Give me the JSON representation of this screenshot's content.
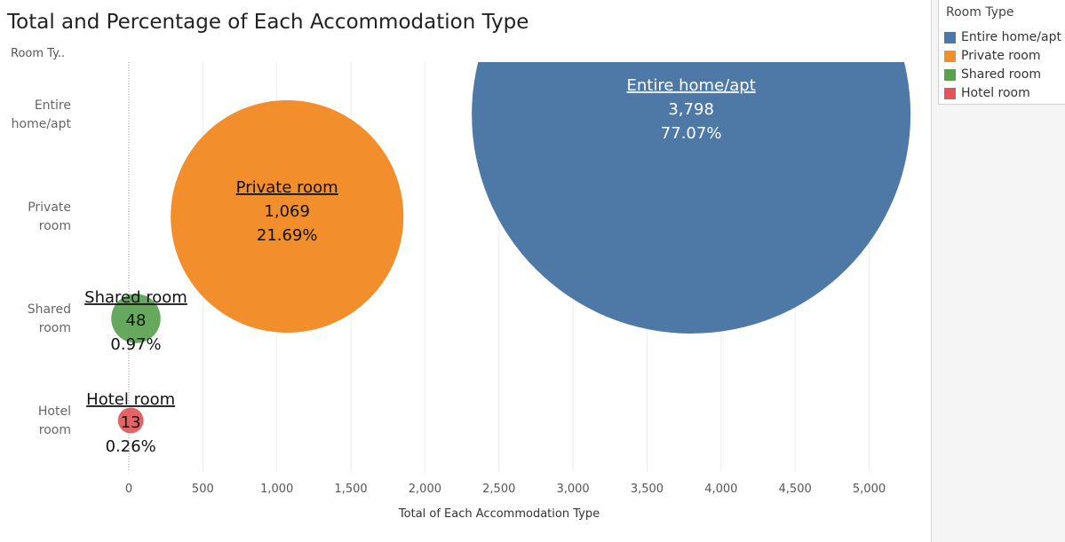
{
  "chart_data": {
    "type": "scatter",
    "title": "Total and Percentage of Each Accommodation Type",
    "row_header": "Room Ty..",
    "xlabel": "Total of Each Accommodation Type",
    "xlim": [
      -350,
      5350
    ],
    "xticks": [
      "0",
      "500",
      "1,000",
      "1,500",
      "2,000",
      "2,500",
      "3,000",
      "3,500",
      "4,000",
      "4,500",
      "5,000"
    ],
    "xtick_values": [
      0,
      500,
      1000,
      1500,
      2000,
      2500,
      3000,
      3500,
      4000,
      4500,
      5000
    ],
    "grid": true,
    "legend_position": "right",
    "legend_title": "Room Type",
    "categories": [
      {
        "line1": "Entire",
        "line2": "home/apt"
      },
      {
        "line1": "Private",
        "line2": "room"
      },
      {
        "line1": "Shared",
        "line2": "room"
      },
      {
        "line1": "Hotel",
        "line2": "room"
      }
    ],
    "series": [
      {
        "name": "Entire home/apt",
        "value": 3798,
        "value_label": "3,798",
        "percent": 77.07,
        "percent_label": "77.07%",
        "color": "#4e79a7"
      },
      {
        "name": "Private room",
        "value": 1069,
        "value_label": "1,069",
        "percent": 21.69,
        "percent_label": "21.69%",
        "color": "#f28e2b"
      },
      {
        "name": "Shared room",
        "value": 48,
        "value_label": "48",
        "percent": 0.97,
        "percent_label": "0.97%",
        "color": "#59a14f"
      },
      {
        "name": "Hotel room",
        "value": 13,
        "value_label": "13",
        "percent": 0.26,
        "percent_label": "0.26%",
        "color": "#e15759"
      }
    ]
  }
}
